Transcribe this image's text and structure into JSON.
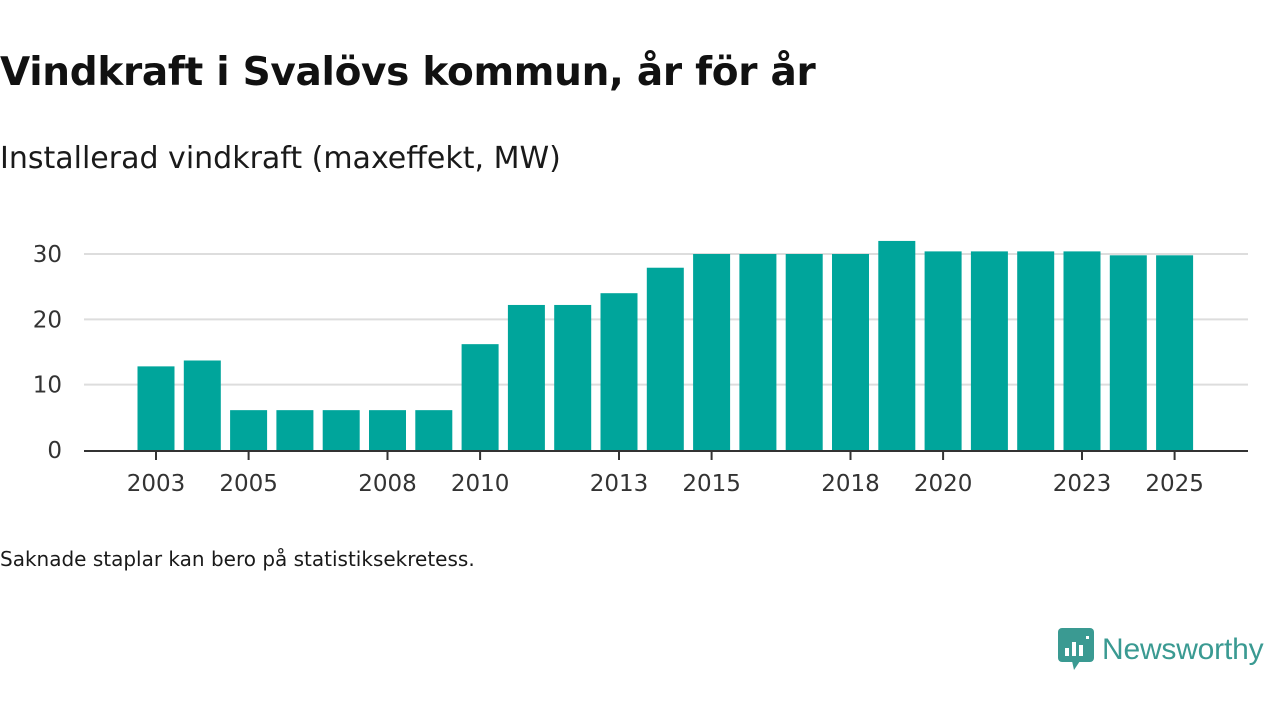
{
  "header": {
    "title": "Vindkraft i Svalövs kommun, år för år",
    "subtitle": "Installerad vindkraft (maxeffekt, MW)"
  },
  "footer": {
    "note": "Saknade staplar kan bero på statistiksekretess.",
    "brand": "Newsworthy"
  },
  "colors": {
    "bar": "#00a59b",
    "grid": "#dddddd",
    "axis": "#333333",
    "brand": "#3a9a92"
  },
  "chart_data": {
    "type": "bar",
    "title": "Vindkraft i Svalövs kommun, år för år",
    "subtitle": "Installerad vindkraft (maxeffekt, MW)",
    "xlabel": "",
    "ylabel": "",
    "ylim": [
      0,
      34
    ],
    "yticks": [
      0,
      10,
      20,
      30
    ],
    "grid": true,
    "categories": [
      "2003",
      "2004",
      "2005",
      "2006",
      "2007",
      "2008",
      "2009",
      "2010",
      "2011",
      "2012",
      "2013",
      "2014",
      "2015",
      "2016",
      "2017",
      "2018",
      "2019",
      "2020",
      "2021",
      "2022",
      "2023",
      "2024",
      "2025"
    ],
    "xtick_labels": [
      "2003",
      "2005",
      "2008",
      "2010",
      "2013",
      "2015",
      "2018",
      "2020",
      "2023",
      "2025"
    ],
    "values": [
      12.8,
      13.7,
      6.1,
      6.1,
      6.1,
      6.1,
      6.1,
      16.2,
      22.2,
      22.2,
      24.0,
      27.9,
      30.0,
      30.0,
      30.0,
      30.0,
      32.0,
      30.4,
      30.4,
      30.4,
      30.4,
      29.8,
      29.8
    ]
  }
}
